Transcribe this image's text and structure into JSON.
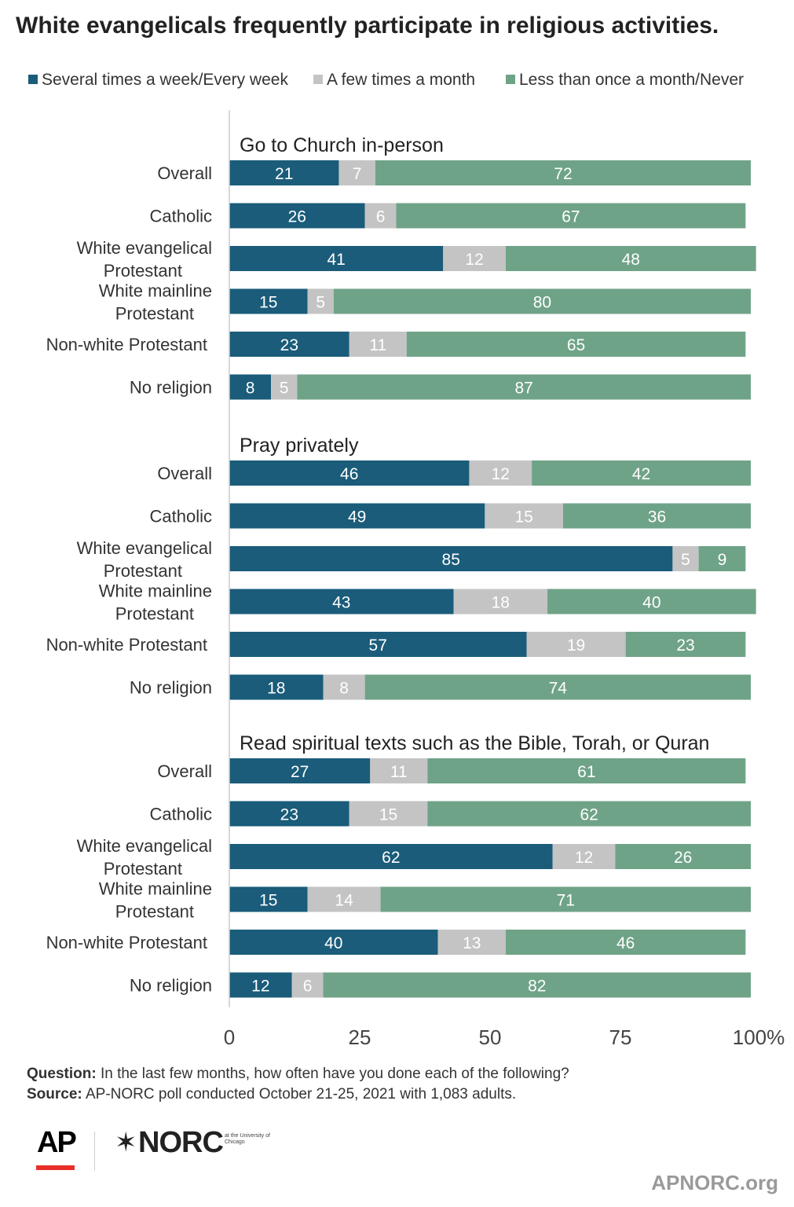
{
  "chart_data": {
    "type": "bar",
    "orientation": "horizontal",
    "stacked": true,
    "title": "White evangelicals frequently participate in religious activities.",
    "legend": [
      {
        "name": "Several times a week/Every week",
        "color": "#1a5c7a"
      },
      {
        "name": "A few times a month",
        "color": "#c4c4c4"
      },
      {
        "name": "Less than once a month/Never",
        "color": "#6fa387"
      }
    ],
    "xlim": [
      0,
      100
    ],
    "xticks": [
      "0",
      "25",
      "50",
      "75",
      "100%"
    ],
    "categories": [
      "Overall",
      "Catholic",
      "White evangelical Protestant",
      "White mainline Protestant",
      "Non-white Protestant",
      "No religion"
    ],
    "category_lines": [
      [
        "Overall"
      ],
      [
        "Catholic"
      ],
      [
        "White evangelical",
        "Protestant"
      ],
      [
        "White mainline",
        "Protestant"
      ],
      [
        "Non-white Protestant"
      ],
      [
        "No religion"
      ]
    ],
    "groups": [
      {
        "label": "Go to Church in-person",
        "values": [
          [
            21,
            7,
            72
          ],
          [
            26,
            6,
            67
          ],
          [
            41,
            12,
            48
          ],
          [
            15,
            5,
            80
          ],
          [
            23,
            11,
            65
          ],
          [
            8,
            5,
            87
          ]
        ]
      },
      {
        "label": "Pray privately",
        "values": [
          [
            46,
            12,
            42
          ],
          [
            49,
            15,
            36
          ],
          [
            85,
            5,
            9
          ],
          [
            43,
            18,
            40
          ],
          [
            57,
            19,
            23
          ],
          [
            18,
            8,
            74
          ]
        ]
      },
      {
        "label": "Read spiritual texts such as the Bible, Torah, or Quran",
        "values": [
          [
            27,
            11,
            61
          ],
          [
            23,
            15,
            62
          ],
          [
            62,
            12,
            26
          ],
          [
            15,
            14,
            71
          ],
          [
            40,
            13,
            46
          ],
          [
            12,
            6,
            82
          ]
        ]
      }
    ]
  },
  "footnote": {
    "question_label": "Question:",
    "question_text": "In the last few months, how often have you done each of the following?",
    "source_label": "Source:",
    "source_text": "AP-NORC poll conducted October 21-25, 2021 with 1,083 adults."
  },
  "logos": {
    "ap": "AP",
    "norc": "NORC",
    "norc_sub": "at the University of Chicago",
    "site": "APNORC.org"
  },
  "colors": {
    "value_label": "#ffffff",
    "axis_line": "#cccccc",
    "text": "#333333"
  }
}
